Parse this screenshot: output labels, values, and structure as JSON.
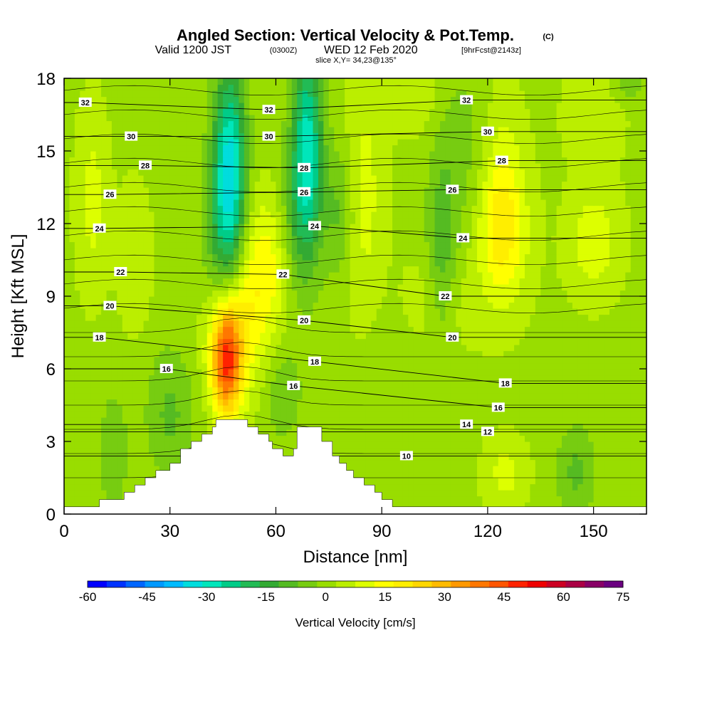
{
  "header": {
    "title": "Angled Section: Vertical Velocity & Pot.Temp.",
    "title_unit": "(C)",
    "valid_prefix": "Valid 1200 JST",
    "valid_zulu": "(0300Z)",
    "valid_date": "WED 12 Feb 2020",
    "forecast_info": "[9hrFcst@2143z]",
    "slice_info": "slice X,Y= 34,23@135°"
  },
  "chart_data": {
    "type": "heatmap",
    "title": "Angled Section: Vertical Velocity & Pot.Temp. (C)",
    "xlabel": "Distance [nm]",
    "ylabel": "Height [Kft MSL]",
    "xlim": [
      0,
      165
    ],
    "ylim": [
      0,
      18
    ],
    "xticks": [
      0,
      30,
      60,
      90,
      120,
      150
    ],
    "yticks": [
      0,
      3,
      6,
      9,
      12,
      15,
      18
    ],
    "grid": false,
    "colorbar": {
      "label": "Vertical Velocity [cm/s]",
      "range": [
        -60,
        75
      ],
      "step": 5,
      "ticks": [
        -60,
        -45,
        -30,
        -15,
        0,
        15,
        30,
        45,
        60,
        75
      ],
      "colors": [
        "#0000ff",
        "#0033ff",
        "#0066ff",
        "#0099ff",
        "#00bbff",
        "#00dddd",
        "#00e6bb",
        "#00cc88",
        "#22bb55",
        "#33aa33",
        "#55bb22",
        "#77cc11",
        "#99dd00",
        "#bbee00",
        "#ddff00",
        "#ffff00",
        "#ffee00",
        "#ffd700",
        "#ffbb00",
        "#ff9900",
        "#ff7700",
        "#ff5500",
        "#ff2200",
        "#ee0000",
        "#cc0022",
        "#aa0044",
        "#880066",
        "#6a0080"
      ]
    },
    "terrain": [
      [
        0,
        0.3
      ],
      [
        10,
        0.3
      ],
      [
        10,
        0.6
      ],
      [
        17,
        0.6
      ],
      [
        17,
        0.9
      ],
      [
        20,
        0.9
      ],
      [
        20,
        1.2
      ],
      [
        23,
        1.2
      ],
      [
        23,
        1.5
      ],
      [
        26,
        1.5
      ],
      [
        26,
        1.8
      ],
      [
        30,
        1.8
      ],
      [
        30,
        2.1
      ],
      [
        33,
        2.1
      ],
      [
        33,
        2.7
      ],
      [
        36,
        2.7
      ],
      [
        36,
        3.0
      ],
      [
        39,
        3.0
      ],
      [
        39,
        3.3
      ],
      [
        42,
        3.3
      ],
      [
        42,
        3.6
      ],
      [
        43,
        3.6
      ],
      [
        43,
        3.9
      ],
      [
        52,
        3.9
      ],
      [
        52,
        3.6
      ],
      [
        55,
        3.6
      ],
      [
        55,
        3.3
      ],
      [
        58,
        3.3
      ],
      [
        58,
        3.0
      ],
      [
        59,
        3.0
      ],
      [
        59,
        2.7
      ],
      [
        62,
        2.7
      ],
      [
        62,
        2.4
      ],
      [
        65,
        2.4
      ],
      [
        65,
        2.7
      ],
      [
        66,
        2.7
      ],
      [
        66,
        3.6
      ],
      [
        73,
        3.6
      ],
      [
        73,
        3.0
      ],
      [
        76,
        3.0
      ],
      [
        76,
        2.4
      ],
      [
        78,
        2.4
      ],
      [
        78,
        2.1
      ],
      [
        80,
        2.1
      ],
      [
        80,
        1.8
      ],
      [
        82,
        1.8
      ],
      [
        82,
        1.5
      ],
      [
        85,
        1.5
      ],
      [
        85,
        1.2
      ],
      [
        88,
        1.2
      ],
      [
        88,
        0.9
      ],
      [
        90,
        0.9
      ],
      [
        90,
        0.6
      ],
      [
        93,
        0.6
      ],
      [
        93,
        0.3
      ],
      [
        165,
        0.3
      ]
    ],
    "velocity_features": [
      {
        "x": 47,
        "y": 14.5,
        "sx": 3.2,
        "sy": 3.0,
        "w": -32
      },
      {
        "x": 45,
        "y": 11.0,
        "sx": 4.0,
        "sy": 3.0,
        "w": -14
      },
      {
        "x": 69,
        "y": 15.5,
        "sx": 3.0,
        "sy": 3.0,
        "w": -28
      },
      {
        "x": 67,
        "y": 12.5,
        "sx": 4.0,
        "sy": 2.5,
        "w": -12
      },
      {
        "x": 78,
        "y": 12.5,
        "sx": 3.0,
        "sy": 2.0,
        "w": -10
      },
      {
        "x": 46,
        "y": 6.3,
        "sx": 3.0,
        "sy": 1.6,
        "w": 42
      },
      {
        "x": 47,
        "y": 7.8,
        "sx": 5.0,
        "sy": 2.0,
        "w": 14
      },
      {
        "x": 58,
        "y": 10.3,
        "sx": 4.0,
        "sy": 2.0,
        "w": 10
      },
      {
        "x": 53,
        "y": 9.0,
        "sx": 5.0,
        "sy": 2.5,
        "w": 8
      },
      {
        "x": 107,
        "y": 10.5,
        "sx": 3.0,
        "sy": 3.0,
        "w": -12
      },
      {
        "x": 113,
        "y": 15.0,
        "sx": 6.0,
        "sy": 3.0,
        "w": -6
      },
      {
        "x": 124,
        "y": 11.5,
        "sx": 5.0,
        "sy": 2.0,
        "w": 16
      },
      {
        "x": 124,
        "y": 14.0,
        "sx": 4.0,
        "sy": 2.5,
        "w": 8
      },
      {
        "x": 150,
        "y": 11.3,
        "sx": 5.0,
        "sy": 1.5,
        "w": 10
      },
      {
        "x": 145,
        "y": 1.7,
        "sx": 4.0,
        "sy": 1.5,
        "w": -10
      },
      {
        "x": 125,
        "y": 1.7,
        "sx": 4.0,
        "sy": 1.0,
        "w": 8
      },
      {
        "x": 105,
        "y": 8.6,
        "sx": 8.0,
        "sy": 1.5,
        "w": 6
      },
      {
        "x": 8,
        "y": 13.0,
        "sx": 3.0,
        "sy": 2.5,
        "w": 8
      },
      {
        "x": 20,
        "y": 10.5,
        "sx": 3.0,
        "sy": 2.0,
        "w": 6
      },
      {
        "x": 30,
        "y": 4.2,
        "sx": 5.0,
        "sy": 2.0,
        "w": -10
      },
      {
        "x": 14,
        "y": 2.5,
        "sx": 3.0,
        "sy": 2.0,
        "w": -8
      },
      {
        "x": 93,
        "y": 5.5,
        "sx": 8.0,
        "sy": 3.0,
        "w": -4
      },
      {
        "x": 85,
        "y": 13.0,
        "sx": 4.0,
        "sy": 4.0,
        "w": 8
      },
      {
        "x": 62,
        "y": 5.0,
        "sx": 4.0,
        "sy": 1.5,
        "w": -8
      },
      {
        "x": 100,
        "y": 17.2,
        "sx": 5.0,
        "sy": 1.0,
        "w": 6
      },
      {
        "x": 150,
        "y": 16.5,
        "sx": 6.0,
        "sy": 1.5,
        "w": 4
      },
      {
        "x": 160,
        "y": 17.8,
        "sx": 3.0,
        "sy": 0.5,
        "w": -8
      }
    ],
    "contour_labels": [
      {
        "text": "32",
        "x": 6,
        "y": 17.0
      },
      {
        "text": "32",
        "x": 58,
        "y": 16.7
      },
      {
        "text": "32",
        "x": 114,
        "y": 17.1
      },
      {
        "text": "30",
        "x": 19,
        "y": 15.6
      },
      {
        "text": "30",
        "x": 58,
        "y": 15.6
      },
      {
        "text": "30",
        "x": 120,
        "y": 15.8
      },
      {
        "text": "28",
        "x": 23,
        "y": 14.4
      },
      {
        "text": "28",
        "x": 68,
        "y": 14.3
      },
      {
        "text": "28",
        "x": 124,
        "y": 14.6
      },
      {
        "text": "26",
        "x": 13,
        "y": 13.2
      },
      {
        "text": "26",
        "x": 68,
        "y": 13.3
      },
      {
        "text": "26",
        "x": 110,
        "y": 13.4
      },
      {
        "text": "24",
        "x": 10,
        "y": 11.8
      },
      {
        "text": "24",
        "x": 71,
        "y": 11.9
      },
      {
        "text": "24",
        "x": 113,
        "y": 11.4
      },
      {
        "text": "22",
        "x": 16,
        "y": 10.0
      },
      {
        "text": "22",
        "x": 62,
        "y": 9.9
      },
      {
        "text": "22",
        "x": 108,
        "y": 9.0
      },
      {
        "text": "20",
        "x": 13,
        "y": 8.6
      },
      {
        "text": "20",
        "x": 68,
        "y": 8.0
      },
      {
        "text": "20",
        "x": 110,
        "y": 7.3
      },
      {
        "text": "18",
        "x": 10,
        "y": 7.3
      },
      {
        "text": "18",
        "x": 71,
        "y": 6.3
      },
      {
        "text": "18",
        "x": 125,
        "y": 5.4
      },
      {
        "text": "16",
        "x": 29,
        "y": 6.0
      },
      {
        "text": "16",
        "x": 65,
        "y": 5.3
      },
      {
        "text": "16",
        "x": 123,
        "y": 4.4
      },
      {
        "text": "14",
        "x": 114,
        "y": 3.7
      },
      {
        "text": "12",
        "x": 120,
        "y": 3.4
      },
      {
        "text": "10",
        "x": 97,
        "y": 2.4
      }
    ]
  }
}
